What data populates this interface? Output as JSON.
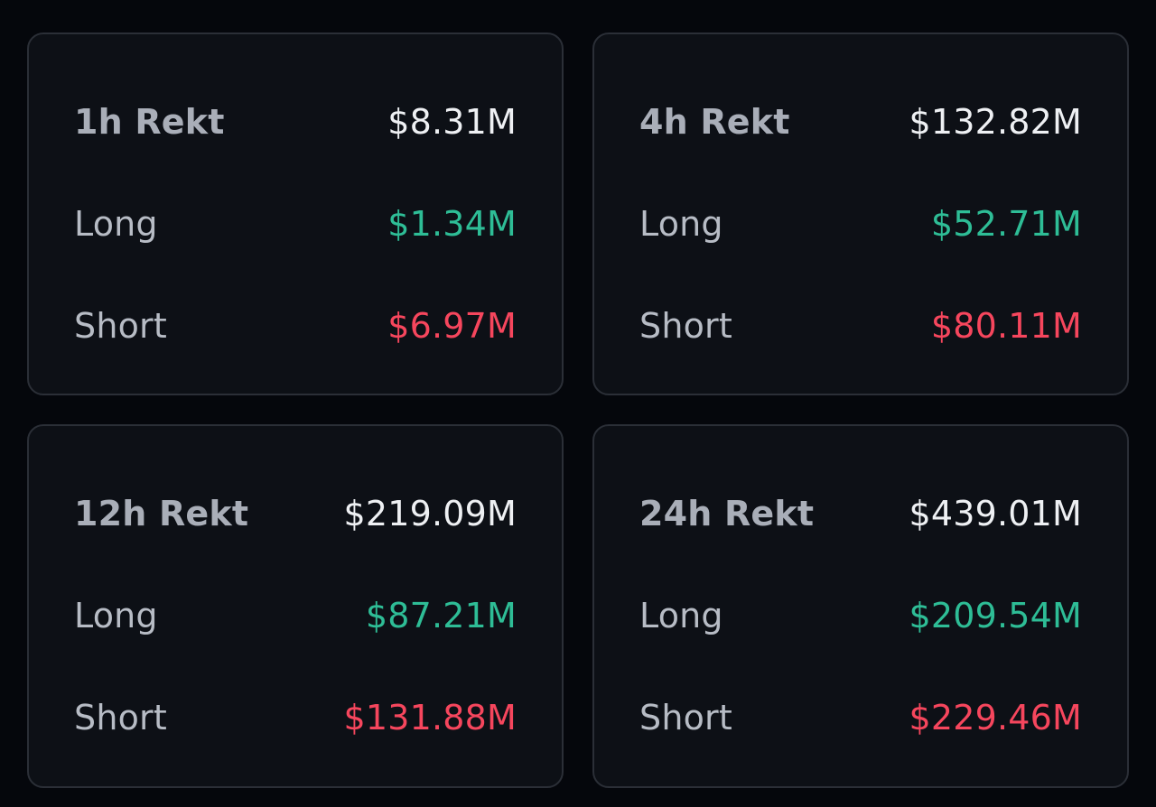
{
  "colors": {
    "background": "#05070c",
    "card": "#0d1016",
    "border": "#2b2f37",
    "label": "#b7bcc5",
    "total": "#eef0f3",
    "long": "#2ebd96",
    "short": "#f6465d"
  },
  "cards": [
    {
      "title": "1h Rekt",
      "total": "$8.31M",
      "long_label": "Long",
      "long": "$1.34M",
      "short_label": "Short",
      "short": "$6.97M"
    },
    {
      "title": "4h Rekt",
      "total": "$132.82M",
      "long_label": "Long",
      "long": "$52.71M",
      "short_label": "Short",
      "short": "$80.11M"
    },
    {
      "title": "12h Rekt",
      "total": "$219.09M",
      "long_label": "Long",
      "long": "$87.21M",
      "short_label": "Short",
      "short": "$131.88M"
    },
    {
      "title": "24h Rekt",
      "total": "$439.01M",
      "long_label": "Long",
      "long": "$209.54M",
      "short_label": "Short",
      "short": "$229.46M"
    }
  ]
}
